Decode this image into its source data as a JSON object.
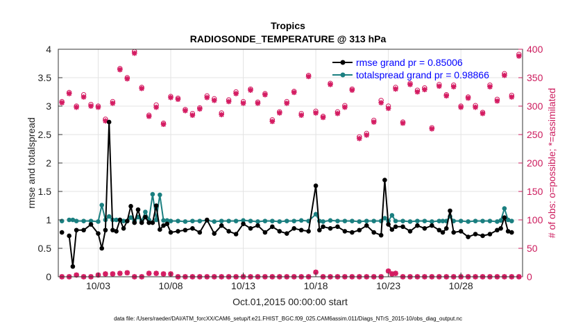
{
  "chart_data": {
    "type": "line",
    "title": "Tropics",
    "subtitle": "RADIOSONDE_TEMPERATURE @ 313 hPa",
    "xlabel": "Oct.01,2015 00:00:00 start",
    "ylabel": "rmse and totalspread",
    "y2label": "# of obs: o=possible; *=assimilated",
    "footer": "data file: /Users/raeder/DAI/ATM_forcXX/CAM6_setup/f.e21.FHIST_BGC.f09_025.CAM6assim.011/Diags_NTrS_2015-10/obs_diag_output.nc",
    "xlim": [
      0.25,
      32.25
    ],
    "ylim": [
      0,
      4
    ],
    "y2lim": [
      0,
      400
    ],
    "xticks": [
      3,
      8,
      13,
      18,
      23,
      28
    ],
    "xtick_labels": [
      "10/03",
      "10/08",
      "10/13",
      "10/18",
      "10/23",
      "10/28"
    ],
    "yticks": [
      "0",
      "0.5",
      "1",
      "1.5",
      "2",
      "2.5",
      "3",
      "3.5",
      "4"
    ],
    "y2ticks": [
      "0",
      "50",
      "100",
      "150",
      "200",
      "250",
      "300",
      "350",
      "400"
    ],
    "legend_position": "top-right",
    "x": [
      0.5,
      0.75,
      1.0,
      1.25,
      1.5,
      2.0,
      2.5,
      3.0,
      3.25,
      3.5,
      3.75,
      4.0,
      4.25,
      4.5,
      4.75,
      5.0,
      5.25,
      5.5,
      5.75,
      6.0,
      6.25,
      6.5,
      6.75,
      7.0,
      7.25,
      7.5,
      7.75,
      8.0,
      8.5,
      9.0,
      9.5,
      10.0,
      10.5,
      11.0,
      11.5,
      12.0,
      12.5,
      13.0,
      13.5,
      14.0,
      14.5,
      15.0,
      15.5,
      16.0,
      16.5,
      17.0,
      17.5,
      18.0,
      18.25,
      18.5,
      19.0,
      19.5,
      20.0,
      20.5,
      21.0,
      21.5,
      22.0,
      22.5,
      22.75,
      23.0,
      23.25,
      23.5,
      24.0,
      24.5,
      25.0,
      25.5,
      26.0,
      26.5,
      26.75,
      27.0,
      27.25,
      27.5,
      28.0,
      28.5,
      29.0,
      29.5,
      30.0,
      30.5,
      30.75,
      31.0,
      31.25,
      31.5,
      32.0
    ],
    "series": [
      {
        "name": "rmse",
        "legend": "rmse grand pr = 0.85006",
        "color": "#000000",
        "values": [
          0.78,
          null,
          0.72,
          0.18,
          0.82,
          0.82,
          0.92,
          0.76,
          0.5,
          0.82,
          2.72,
          0.82,
          0.8,
          1.0,
          0.85,
          0.98,
          1.24,
          0.95,
          1.18,
          0.95,
          1.05,
          0.95,
          0.95,
          1.25,
          0.83,
          0.9,
          0.93,
          0.78,
          0.8,
          0.82,
          0.85,
          0.78,
          1.0,
          0.76,
          0.9,
          0.8,
          0.75,
          0.93,
          0.85,
          0.9,
          0.78,
          0.88,
          0.8,
          0.76,
          0.85,
          0.82,
          0.8,
          1.6,
          0.82,
          0.88,
          0.85,
          0.88,
          0.8,
          0.78,
          0.82,
          0.9,
          0.78,
          0.73,
          1.7,
          0.92,
          0.83,
          0.88,
          0.88,
          0.8,
          0.9,
          0.85,
          0.9,
          0.82,
          0.78,
          0.85,
          1.16,
          0.78,
          0.8,
          0.7,
          0.75,
          0.72,
          0.75,
          0.82,
          0.85,
          1.04,
          0.8,
          0.78,
          null
        ]
      },
      {
        "name": "totalspread",
        "legend": "totalspread grand pr = 0.98866",
        "color": "#1a7f80",
        "values": [
          0.98,
          null,
          1.0,
          1.0,
          0.98,
          0.98,
          0.98,
          0.97,
          1.26,
          1.0,
          1.06,
          1.0,
          1.0,
          1.0,
          0.98,
          0.98,
          1.04,
          0.98,
          1.05,
          0.98,
          1.14,
          1.0,
          1.45,
          1.0,
          1.44,
          0.99,
          0.99,
          0.98,
          0.98,
          0.97,
          0.98,
          0.98,
          0.99,
          0.97,
          0.98,
          0.98,
          0.98,
          0.99,
          0.98,
          0.97,
          0.98,
          0.98,
          0.97,
          0.98,
          0.98,
          0.99,
          0.98,
          1.1,
          0.98,
          0.97,
          0.99,
          0.98,
          0.98,
          0.98,
          0.97,
          0.98,
          0.98,
          0.98,
          1.03,
          0.98,
          1.08,
          0.98,
          0.98,
          0.97,
          0.98,
          0.98,
          0.97,
          0.98,
          0.98,
          0.98,
          1.06,
          0.98,
          0.98,
          0.97,
          0.98,
          0.98,
          0.98,
          0.97,
          0.99,
          1.2,
          1.0,
          0.98,
          null
        ]
      }
    ],
    "obs_x": [
      0.5,
      1.0,
      1.5,
      2.0,
      2.5,
      3.0,
      3.5,
      4.0,
      4.5,
      5.0,
      5.5,
      6.0,
      6.5,
      7.0,
      7.5,
      8.0,
      8.5,
      9.0,
      9.5,
      10.0,
      10.5,
      11.0,
      11.5,
      12.0,
      12.5,
      13.0,
      13.5,
      14.0,
      14.5,
      15.0,
      15.5,
      16.0,
      16.5,
      17.0,
      17.5,
      18.0,
      18.5,
      19.0,
      19.5,
      20.0,
      20.5,
      21.0,
      21.5,
      22.0,
      22.5,
      23.0,
      23.5,
      24.0,
      24.5,
      25.0,
      25.5,
      26.0,
      26.5,
      27.0,
      27.5,
      28.0,
      28.5,
      29.0,
      29.5,
      30.0,
      30.5,
      31.0,
      31.5,
      32.0
    ],
    "obs_possible": [
      308,
      324,
      300,
      320,
      303,
      300,
      277,
      308,
      366,
      350,
      396,
      333,
      284,
      302,
      270,
      317,
      314,
      294,
      287,
      297,
      318,
      313,
      288,
      311,
      325,
      308,
      330,
      307,
      322,
      276,
      290,
      308,
      326,
      287,
      354,
      291,
      282,
      340,
      290,
      301,
      330,
      246,
      252,
      275,
      310,
      300,
      333,
      272,
      340,
      328,
      332,
      262,
      338,
      320,
      337,
      300,
      316,
      301,
      289,
      337,
      312,
      357,
      319,
      391
    ],
    "obs_assimilated": [
      306,
      322,
      298,
      316,
      300,
      298,
      274,
      305,
      364,
      348,
      393,
      331,
      282,
      298,
      268,
      315,
      312,
      292,
      284,
      295,
      315,
      310,
      285,
      308,
      322,
      305,
      328,
      305,
      320,
      273,
      288,
      305,
      324,
      284,
      352,
      288,
      280,
      338,
      287,
      298,
      328,
      243,
      249,
      272,
      306,
      296,
      330,
      270,
      338,
      325,
      329,
      260,
      335,
      318,
      334,
      298,
      314,
      298,
      287,
      334,
      309,
      354,
      316,
      388
    ],
    "obs_low_x": [
      0.5,
      1.0,
      1.5,
      2.0,
      2.5,
      3.0,
      3.5,
      4.0,
      4.5,
      5.0,
      5.5,
      6.0,
      6.5,
      7.0,
      7.5,
      8.0,
      8.5,
      9.0,
      9.5,
      10.0,
      10.5,
      11.0,
      11.5,
      12.0,
      12.5,
      13.0,
      13.5,
      14.0,
      14.5,
      15.0,
      15.5,
      16.0,
      16.5,
      17.0,
      17.5,
      18.0,
      18.5,
      19.0,
      19.5,
      20.0,
      20.5,
      21.0,
      21.5,
      22.0,
      22.5,
      23.0,
      23.25,
      23.5,
      24.0,
      24.5,
      25.0,
      25.5,
      26.0,
      26.5,
      27.0,
      27.5,
      28.0,
      28.5,
      29.0,
      29.5,
      30.0,
      30.5,
      31.0,
      31.5,
      32.0
    ],
    "obs_low_values": [
      0,
      0,
      3,
      0,
      0,
      3,
      5,
      5,
      6,
      7,
      0,
      0,
      6,
      6,
      5,
      5,
      0,
      0,
      0,
      0,
      0,
      0,
      0,
      0,
      0,
      0,
      0,
      0,
      0,
      0,
      0,
      0,
      0,
      0,
      0,
      8,
      0,
      0,
      0,
      0,
      0,
      0,
      0,
      0,
      0,
      10,
      5,
      6,
      0,
      0,
      0,
      0,
      0,
      0,
      0,
      0,
      0,
      0,
      0,
      0,
      0,
      0,
      0,
      0,
      0
    ]
  }
}
